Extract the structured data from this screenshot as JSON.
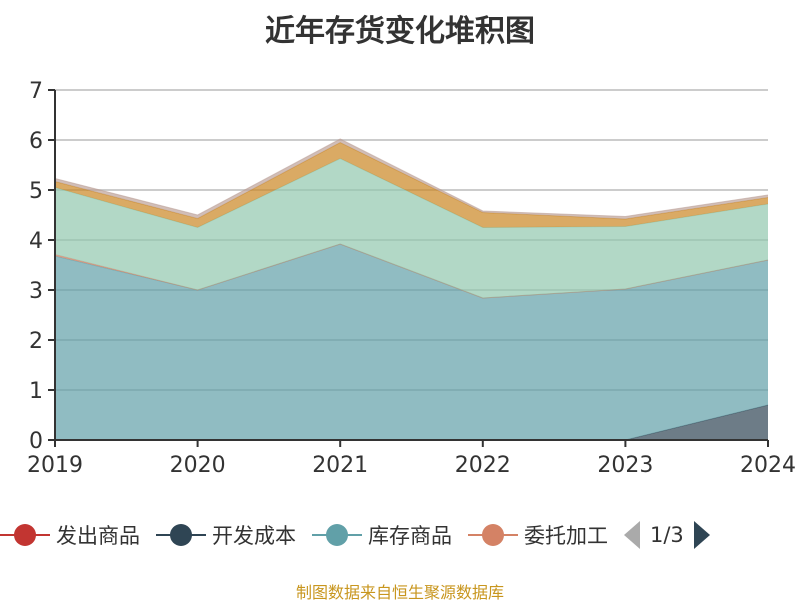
{
  "chart_data": {
    "type": "area",
    "stacked": true,
    "title": "近年存货变化堆积图",
    "categories": [
      "2019",
      "2020",
      "2021",
      "2022",
      "2023",
      "2024"
    ],
    "ylim": [
      0,
      7
    ],
    "yticks": [
      "0",
      "1",
      "2",
      "3",
      "4",
      "5",
      "6",
      "7"
    ],
    "grid": true,
    "legend_position": "bottom",
    "series": [
      {
        "name": "发出商品",
        "color": "#c23531",
        "values": [
          0,
          0,
          0,
          0,
          0,
          0
        ]
      },
      {
        "name": "开发成本",
        "color": "#2f4554",
        "values": [
          0,
          0,
          0,
          0,
          0,
          0.7
        ]
      },
      {
        "name": "库存商品",
        "color": "#61a0a8",
        "values": [
          3.68,
          3.0,
          3.92,
          2.84,
          3.02,
          2.9
        ]
      },
      {
        "name": "委托加工",
        "color": "#d48265",
        "values": [
          0.03,
          0,
          0,
          0,
          0,
          0
        ]
      },
      {
        "color": "#91c7ae",
        "values": [
          1.34,
          1.25,
          1.71,
          1.41,
          1.25,
          1.12
        ]
      },
      {
        "color": "#ca8622",
        "values": [
          0.12,
          0.18,
          0.32,
          0.3,
          0.15,
          0.13
        ]
      },
      {
        "color": "#bda29a",
        "values": [
          0.06,
          0.07,
          0.07,
          0.03,
          0.05,
          0.05
        ]
      }
    ]
  },
  "legend": {
    "items": [
      {
        "label": "发出商品",
        "color": "#c23531"
      },
      {
        "label": "开发成本",
        "color": "#2f4554"
      },
      {
        "label": "库存商品",
        "color": "#61a0a8"
      },
      {
        "label": "委托加工",
        "color": "#d48265"
      }
    ],
    "page": "1/3"
  },
  "footer": "制图数据来自恒生聚源数据库"
}
